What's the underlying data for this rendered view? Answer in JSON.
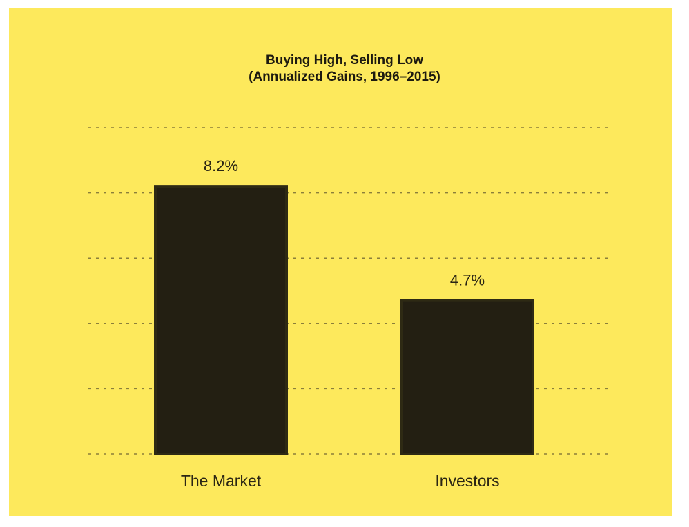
{
  "colors": {
    "background": "#fde95c",
    "bar_fill": "#231f12",
    "bar_edge": "#2e2a14",
    "gridline": "#8b7f3a",
    "text": "#2b2614"
  },
  "chart_data": {
    "type": "bar",
    "title": "Buying High, Selling Low",
    "subtitle": "(Annualized Gains, 1996–2015)",
    "categories": [
      "The Market",
      "Investors"
    ],
    "values": [
      8.2,
      4.7
    ],
    "value_labels": [
      "8.2%",
      "4.7%"
    ],
    "unit": "%",
    "xlabel": "",
    "ylabel": "",
    "ylim": [
      0,
      10
    ],
    "grid": true,
    "gridline_style": "dotted",
    "legend": "none"
  }
}
